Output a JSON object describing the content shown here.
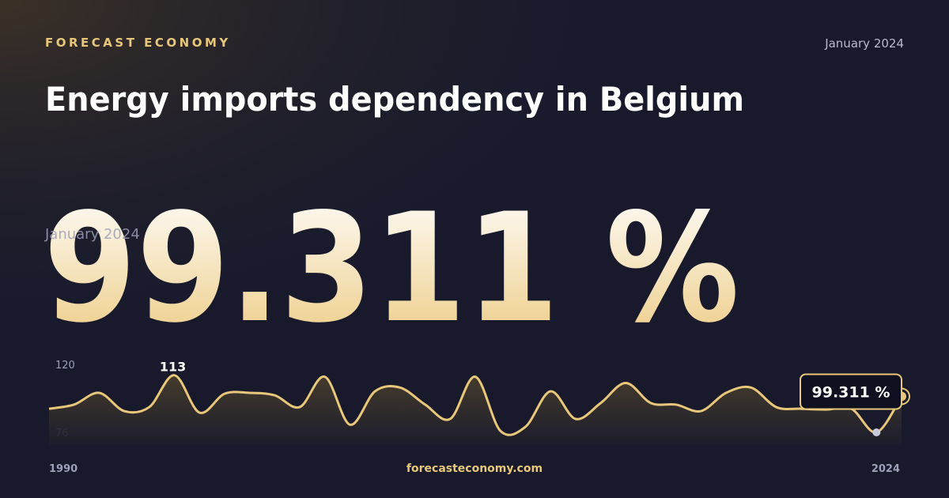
{
  "brand": "FORECAST ECONOMY",
  "date": "January 2024",
  "footer": "forecasteconomy.com",
  "chart_data": {
    "type": "line",
    "title": "Energy imports dependency in Belgium",
    "x": [
      1990,
      1991,
      1992,
      1993,
      1994,
      1995,
      1996,
      1997,
      1998,
      1999,
      2000,
      2001,
      2002,
      2003,
      2004,
      2005,
      2006,
      2007,
      2008,
      2009,
      2010,
      2011,
      2012,
      2013,
      2014,
      2015,
      2016,
      2017,
      2018,
      2019,
      2020,
      2021,
      2022,
      2023,
      2024
    ],
    "values": [
      91.3,
      94,
      101.6,
      89.8,
      92.4,
      113,
      88.8,
      101,
      101.6,
      100,
      92.4,
      112,
      81,
      102.6,
      105,
      94,
      84.7,
      112,
      77,
      79.6,
      102.6,
      84.7,
      95,
      108,
      95,
      94,
      89.8,
      101.6,
      105,
      92.4,
      91.3,
      90.8,
      91.3,
      76,
      99.311
    ],
    "value_labels": [
      null,
      null,
      null,
      null,
      null,
      "113",
      null,
      null,
      null,
      null,
      null,
      null,
      null,
      null,
      null,
      null,
      null,
      null,
      null,
      null,
      null,
      null,
      null,
      null,
      null,
      null,
      null,
      null,
      null,
      null,
      null,
      null,
      null,
      null,
      "99.311 %"
    ],
    "color": "#e8c77a",
    "xlim": [
      1990,
      2024
    ],
    "xticks": [
      1990,
      2024
    ],
    "ylim": [
      76,
      120
    ],
    "yticks": [
      76,
      120
    ]
  }
}
